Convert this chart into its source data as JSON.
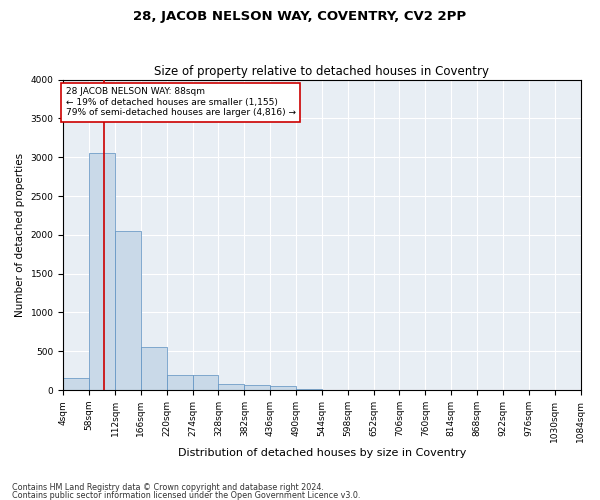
{
  "title1": "28, JACOB NELSON WAY, COVENTRY, CV2 2PP",
  "title2": "Size of property relative to detached houses in Coventry",
  "xlabel": "Distribution of detached houses by size in Coventry",
  "ylabel": "Number of detached properties",
  "bin_edges": [
    4,
    58,
    112,
    166,
    220,
    274,
    328,
    382,
    436,
    490,
    544,
    598,
    652,
    706,
    760,
    814,
    868,
    922,
    976,
    1030,
    1084
  ],
  "bar_heights": [
    150,
    3050,
    2050,
    550,
    200,
    195,
    80,
    60,
    50,
    20,
    5,
    3,
    2,
    1,
    1,
    1,
    0,
    0,
    0,
    0
  ],
  "bar_color": "#c9d9e8",
  "bar_edge_color": "#5a8fc0",
  "property_size": 88,
  "red_line_color": "#cc0000",
  "annotation_text": "28 JACOB NELSON WAY: 88sqm\n← 19% of detached houses are smaller (1,155)\n79% of semi-detached houses are larger (4,816) →",
  "annotation_box_color": "white",
  "annotation_box_edge_color": "#cc0000",
  "ylim": [
    0,
    4000
  ],
  "yticks": [
    0,
    500,
    1000,
    1500,
    2000,
    2500,
    3000,
    3500,
    4000
  ],
  "bg_color": "#e8eef4",
  "grid_color": "white",
  "footer1": "Contains HM Land Registry data © Crown copyright and database right 2024.",
  "footer2": "Contains public sector information licensed under the Open Government Licence v3.0.",
  "title1_fontsize": 9.5,
  "title2_fontsize": 8.5,
  "xlabel_fontsize": 8,
  "ylabel_fontsize": 7.5,
  "tick_fontsize": 6.5,
  "annotation_fontsize": 6.5,
  "footer_fontsize": 5.8
}
